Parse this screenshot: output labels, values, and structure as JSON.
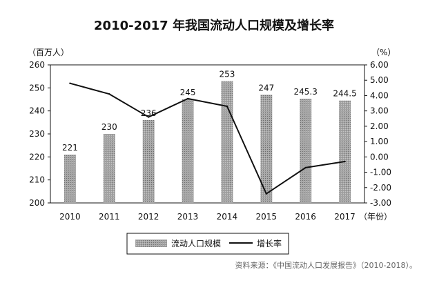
{
  "chart_data": {
    "type": "bar+line",
    "title": "2010-2017 年我国流动人口规模及增长率",
    "left_unit": "（百万人）",
    "right_unit": "（%）",
    "x_unit": "（年份）",
    "categories": [
      "2010",
      "2011",
      "2012",
      "2013",
      "2014",
      "2015",
      "2016",
      "2017"
    ],
    "left_axis": {
      "ylim": [
        200,
        260
      ],
      "ticks": [
        "200",
        "210",
        "220",
        "230",
        "240",
        "250",
        "260"
      ]
    },
    "right_axis": {
      "ylim": [
        -3,
        6
      ],
      "ticks": [
        "6.00",
        "5.00",
        "4.00",
        "3.00",
        "2.00",
        "1.00",
        "0.00",
        "-1.00",
        "-2.00",
        "-3.00"
      ]
    },
    "series": [
      {
        "name": "流动人口规模",
        "type": "bar",
        "axis": "left",
        "values": [
          221,
          230,
          236,
          245,
          253,
          247,
          245.3,
          244.5
        ],
        "labels": [
          "221",
          "230",
          "236",
          "245",
          "253",
          "247",
          "245.3",
          "244.5"
        ]
      },
      {
        "name": "增长率",
        "type": "line",
        "axis": "right",
        "values": [
          4.8,
          4.1,
          2.6,
          3.8,
          3.3,
          -2.4,
          -0.7,
          -0.3
        ]
      }
    ],
    "legend_position": "bottom-center",
    "grid": false,
    "source_note": "资料来源：《中国流动人口发展报告》（2010-2018）。",
    "colors": {
      "bar": "#9a9a9a",
      "line": "#111111"
    }
  }
}
